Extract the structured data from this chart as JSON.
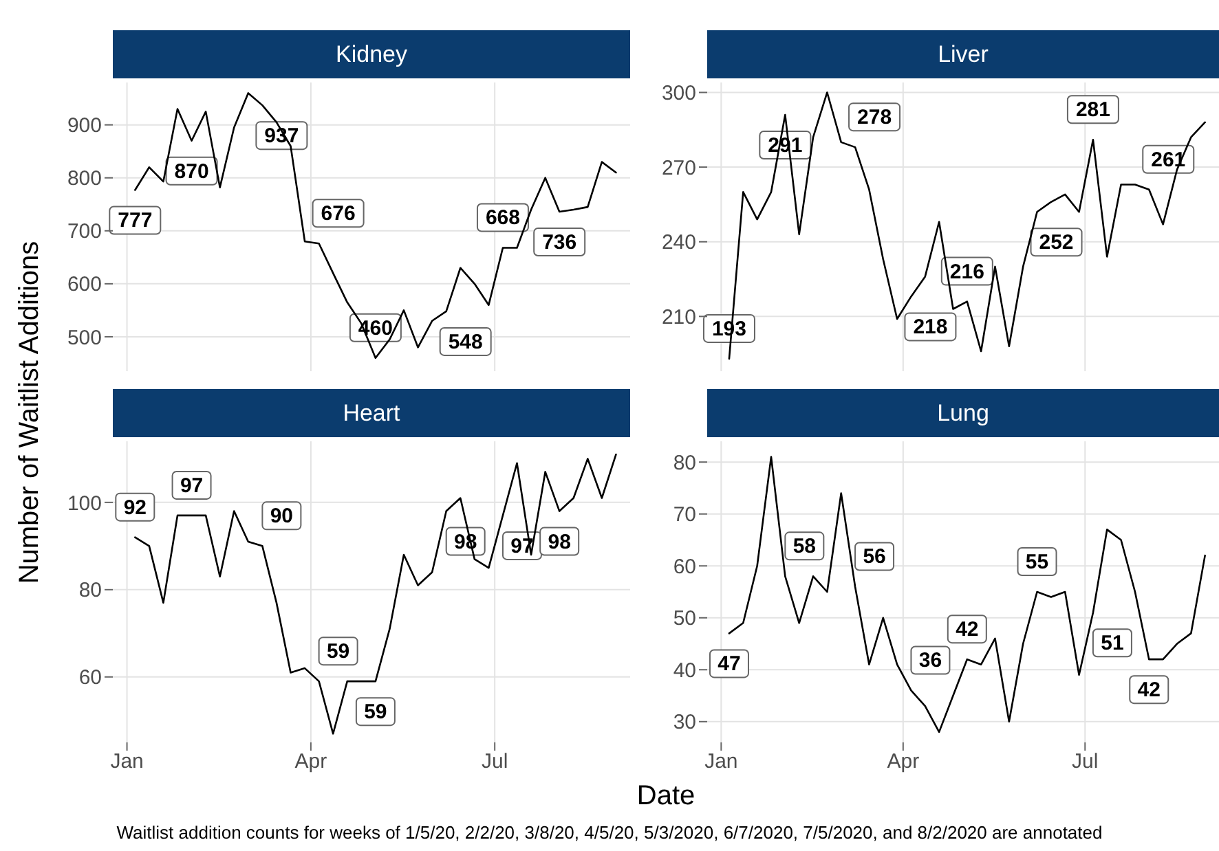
{
  "chart_data": [
    {
      "type": "line",
      "title": "Kidney",
      "ylabel": "Number of Waitlist Additions",
      "xlabel": "Date",
      "tick_labels": "y",
      "grid": true,
      "x": [
        "2020-01-05",
        "2020-01-12",
        "2020-01-19",
        "2020-01-26",
        "2020-02-02",
        "2020-02-09",
        "2020-02-16",
        "2020-02-23",
        "2020-03-01",
        "2020-03-08",
        "2020-03-15",
        "2020-03-22",
        "2020-03-29",
        "2020-04-05",
        "2020-04-12",
        "2020-04-19",
        "2020-04-26",
        "2020-05-03",
        "2020-05-10",
        "2020-05-17",
        "2020-05-24",
        "2020-05-31",
        "2020-06-07",
        "2020-06-14",
        "2020-06-21",
        "2020-06-28",
        "2020-07-05",
        "2020-07-12",
        "2020-07-19",
        "2020-07-26",
        "2020-08-02",
        "2020-08-09",
        "2020-08-16",
        "2020-08-23",
        "2020-08-30"
      ],
      "values": [
        777,
        820,
        793,
        930,
        870,
        925,
        782,
        895,
        960,
        937,
        905,
        860,
        680,
        676,
        620,
        565,
        525,
        460,
        495,
        550,
        480,
        530,
        548,
        630,
        600,
        560,
        668,
        668,
        740,
        800,
        736,
        740,
        745,
        830,
        810
      ],
      "color": "#000000",
      "xlim": [
        "2019-12-25",
        "2020-09-06"
      ],
      "xticks": [
        {
          "value": "2020-01-01",
          "label": null
        },
        {
          "value": "2020-04-01",
          "label": null
        },
        {
          "value": "2020-07-01",
          "label": null
        }
      ],
      "ylim": [
        435,
        980
      ],
      "yticks": [
        500,
        600,
        700,
        800,
        900
      ],
      "annotations": [
        {
          "text": "777",
          "x": "2020-01-05",
          "y": 777
        },
        {
          "text": "870",
          "x": "2020-02-02",
          "y": 870
        },
        {
          "text": "937",
          "x": "2020-03-08",
          "y": 937
        },
        {
          "text": "676",
          "x": "2020-04-05",
          "y": 676
        },
        {
          "text": "460",
          "x": "2020-05-03",
          "y": 460
        },
        {
          "text": "548",
          "x": "2020-06-07",
          "y": 548
        },
        {
          "text": "668",
          "x": "2020-07-05",
          "y": 668
        },
        {
          "text": "736",
          "x": "2020-08-02",
          "y": 736
        },
        "Waitlist addition counts for weeks of 1/5/20, 2/2/20, 3/8/20, 4/5/20, 5/3/2020, 6/7/2020, 7/5/2020, and 8/2/2020 are annotated"
      ]
    },
    {
      "type": "line",
      "title": "Liver",
      "tick_labels": "y",
      "grid": true,
      "x": [
        "2020-01-05",
        "2020-01-12",
        "2020-01-19",
        "2020-01-26",
        "2020-02-02",
        "2020-02-09",
        "2020-02-16",
        "2020-02-23",
        "2020-03-01",
        "2020-03-08",
        "2020-03-15",
        "2020-03-22",
        "2020-03-29",
        "2020-04-05",
        "2020-04-12",
        "2020-04-19",
        "2020-04-26",
        "2020-05-03",
        "2020-05-10",
        "2020-05-17",
        "2020-05-24",
        "2020-05-31",
        "2020-06-07",
        "2020-06-14",
        "2020-06-21",
        "2020-06-28",
        "2020-07-05",
        "2020-07-12",
        "2020-07-19",
        "2020-07-26",
        "2020-08-02",
        "2020-08-09",
        "2020-08-16",
        "2020-08-23",
        "2020-08-30"
      ],
      "values": [
        193,
        260,
        249,
        260,
        291,
        243,
        282,
        300,
        280,
        278,
        261,
        233,
        209,
        218,
        226,
        248,
        213,
        216,
        196,
        230,
        198,
        230,
        252,
        256,
        259,
        252,
        281,
        234,
        263,
        263,
        261,
        247,
        269,
        282,
        288
      ],
      "color": "#000000",
      "xlim": [
        "2019-12-25",
        "2020-09-06"
      ],
      "xticks": [
        {
          "value": "2020-01-01",
          "label": null
        },
        {
          "value": "2020-04-01",
          "label": null
        },
        {
          "value": "2020-07-01",
          "label": null
        }
      ],
      "ylim": [
        188,
        304
      ],
      "yticks": [
        210,
        240,
        270,
        300
      ],
      "annotations": [
        {
          "text": "193",
          "x": "2020-01-05",
          "y": 193
        },
        {
          "text": "291",
          "x": "2020-02-02",
          "y": 291
        },
        {
          "text": "278",
          "x": "2020-03-08",
          "y": 278
        },
        {
          "text": "218",
          "x": "2020-04-05",
          "y": 218
        },
        {
          "text": "216",
          "x": "2020-05-03",
          "y": 216
        },
        {
          "text": "252",
          "x": "2020-06-07",
          "y": 252
        },
        {
          "text": "281",
          "x": "2020-07-05",
          "y": 281
        },
        {
          "text": "261",
          "x": "2020-08-02",
          "y": 261
        }
      ]
    },
    {
      "type": "line",
      "title": "Heart",
      "grid": true,
      "x": [
        "2020-01-05",
        "2020-01-12",
        "2020-01-19",
        "2020-01-26",
        "2020-02-02",
        "2020-02-09",
        "2020-02-16",
        "2020-02-23",
        "2020-03-01",
        "2020-03-08",
        "2020-03-15",
        "2020-03-22",
        "2020-03-29",
        "2020-04-05",
        "2020-04-12",
        "2020-04-19",
        "2020-04-26",
        "2020-05-03",
        "2020-05-10",
        "2020-05-17",
        "2020-05-24",
        "2020-05-31",
        "2020-06-07",
        "2020-06-14",
        "2020-06-21",
        "2020-06-28",
        "2020-07-05",
        "2020-07-12",
        "2020-07-19",
        "2020-07-26",
        "2020-08-02",
        "2020-08-09",
        "2020-08-16",
        "2020-08-23",
        "2020-08-30"
      ],
      "values": [
        92,
        90,
        77,
        97,
        97,
        97,
        83,
        98,
        91,
        90,
        77,
        61,
        62,
        59,
        47,
        59,
        59,
        59,
        71,
        88,
        81,
        84,
        98,
        101,
        87,
        85,
        97,
        109,
        88,
        107,
        98,
        101,
        110,
        101,
        111
      ],
      "color": "#000000",
      "xlim": [
        "2019-12-25",
        "2020-09-06"
      ],
      "xticks": [
        {
          "value": "2020-01-01",
          "label": "Jan"
        },
        {
          "value": "2020-04-01",
          "label": "Apr"
        },
        {
          "value": "2020-07-01",
          "label": "Jul"
        }
      ],
      "ylim": [
        45,
        114
      ],
      "yticks": [
        60,
        80,
        100
      ],
      "annotations": [
        {
          "text": "92",
          "x": "2020-01-05",
          "y": 92
        },
        {
          "text": "97",
          "x": "2020-02-02",
          "y": 97
        },
        {
          "text": "90",
          "x": "2020-03-08",
          "y": 90
        },
        {
          "text": "59",
          "x": "2020-04-05",
          "y": 59
        },
        {
          "text": "59",
          "x": "2020-05-03",
          "y": 59
        },
        {
          "text": "98",
          "x": "2020-06-07",
          "y": 98
        },
        {
          "text": "97",
          "x": "2020-07-05",
          "y": 97
        },
        {
          "text": "98",
          "x": "2020-08-02",
          "y": 98
        }
      ]
    },
    {
      "type": "line",
      "title": "Lung",
      "grid": true,
      "x": [
        "2020-01-05",
        "2020-01-12",
        "2020-01-19",
        "2020-01-26",
        "2020-02-02",
        "2020-02-09",
        "2020-02-16",
        "2020-02-23",
        "2020-03-01",
        "2020-03-08",
        "2020-03-15",
        "2020-03-22",
        "2020-03-29",
        "2020-04-05",
        "2020-04-12",
        "2020-04-19",
        "2020-04-26",
        "2020-05-03",
        "2020-05-10",
        "2020-05-17",
        "2020-05-24",
        "2020-05-31",
        "2020-06-07",
        "2020-06-14",
        "2020-06-21",
        "2020-06-28",
        "2020-07-05",
        "2020-07-12",
        "2020-07-19",
        "2020-07-26",
        "2020-08-02",
        "2020-08-09",
        "2020-08-16",
        "2020-08-23",
        "2020-08-30"
      ],
      "values": [
        47,
        49,
        60,
        81,
        58,
        49,
        58,
        55,
        74,
        56,
        41,
        50,
        41,
        36,
        33,
        28,
        35,
        42,
        41,
        46,
        30,
        45,
        55,
        54,
        55,
        39,
        51,
        67,
        65,
        55,
        42,
        42,
        45,
        47,
        62
      ],
      "color": "#000000",
      "xlim": [
        "2019-12-25",
        "2020-09-06"
      ],
      "xticks": [
        {
          "value": "2020-01-01",
          "label": "Jan"
        },
        {
          "value": "2020-04-01",
          "label": "Apr"
        },
        {
          "value": "2020-07-01",
          "label": "Jul"
        }
      ],
      "ylim": [
        26,
        84
      ],
      "yticks": [
        30,
        40,
        50,
        60,
        70,
        80
      ],
      "annotations": [
        {
          "text": "47",
          "x": "2020-01-05",
          "y": 47
        },
        {
          "text": "58",
          "x": "2020-02-02",
          "y": 58
        },
        {
          "text": "56",
          "x": "2020-03-08",
          "y": 56
        },
        {
          "text": "36",
          "x": "2020-04-05",
          "y": 36
        },
        {
          "text": "42",
          "x": "2020-05-03",
          "y": 42
        },
        {
          "text": "55",
          "x": "2020-06-07",
          "y": 55
        },
        {
          "text": "51",
          "x": "2020-07-05",
          "y": 51
        },
        {
          "text": "42",
          "x": "2020-08-02",
          "y": 42
        }
      ]
    }
  ]
}
